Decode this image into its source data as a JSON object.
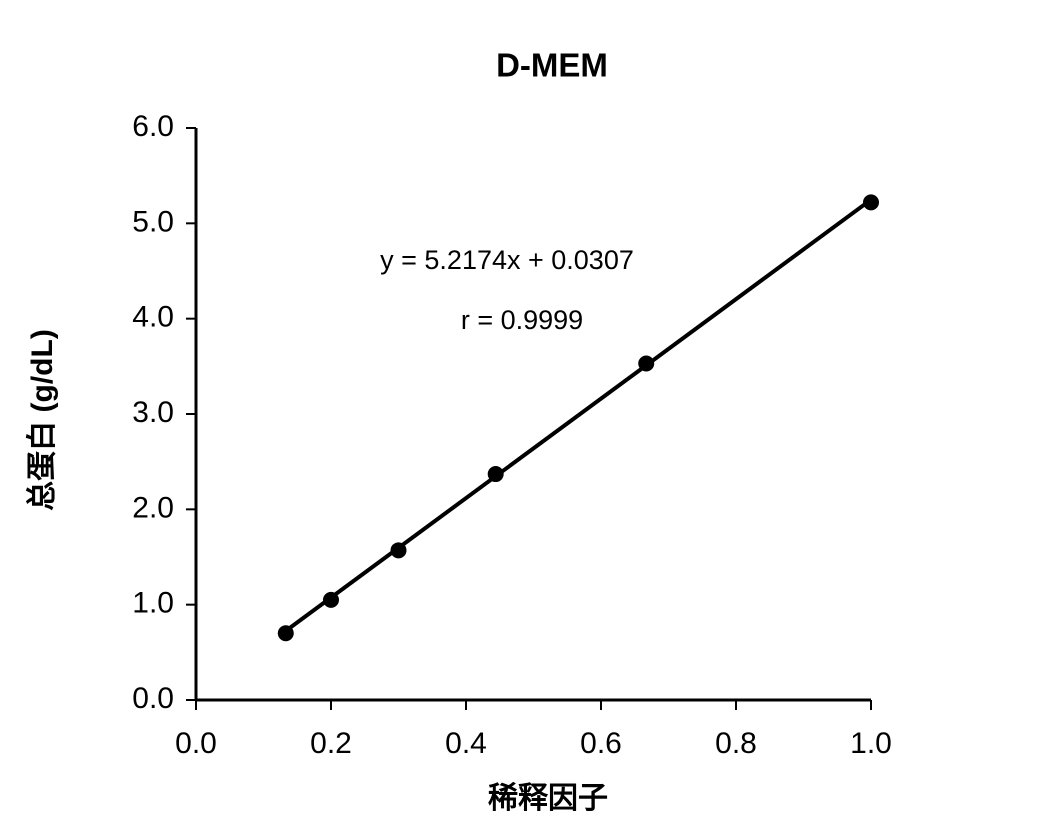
{
  "chart_data": {
    "type": "scatter",
    "title": "D-MEM",
    "x_label": "稀释因子",
    "y_label": "总蛋白 (g/dL)",
    "x": [
      0.133,
      0.2,
      0.3,
      0.444,
      0.667,
      1.0
    ],
    "series": [
      {
        "name": "D-MEM",
        "color": "#000000",
        "values": [
          0.7,
          1.05,
          1.57,
          2.37,
          3.53,
          5.22
        ]
      }
    ],
    "trendline": {
      "label": "y = 5.2174x + 0.0307",
      "slope": 5.2174,
      "intercept": 0.0307
    },
    "r_label": "r = 0.9999",
    "xlim": [
      0,
      1.0
    ],
    "xticks": [
      {
        "value": 0,
        "label": "0.0"
      },
      0.2,
      0.4,
      0.6,
      0.8,
      {
        "value": 1.0,
        "label": "1.0"
      }
    ],
    "ylim": [
      0,
      6.0
    ],
    "yticks": [
      {
        "value": 0,
        "label": "0.0"
      },
      {
        "value": 1,
        "label": "1.0"
      },
      {
        "value": 2,
        "label": "2.0"
      },
      {
        "value": 3,
        "label": "3.0"
      },
      {
        "value": 4,
        "label": "4.0"
      },
      {
        "value": 5,
        "label": "5.0"
      },
      {
        "value": 6,
        "label": "6.0"
      }
    ],
    "grid": false
  }
}
